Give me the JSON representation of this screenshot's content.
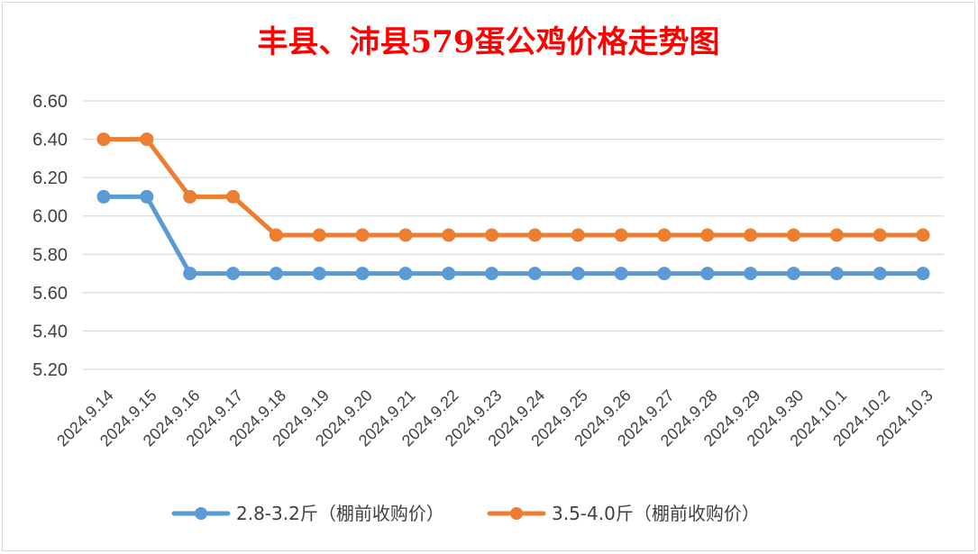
{
  "chart_data": {
    "type": "line",
    "title": "丰县、沛县579蛋公鸡价格走势图",
    "categories": [
      "2024.9.14",
      "2024.9.15",
      "2024.9.16",
      "2024.9.17",
      "2024.9.18",
      "2024.9.19",
      "2024.9.20",
      "2024.9.21",
      "2024.9.22",
      "2024.9.23",
      "2024.9.24",
      "2024.9.25",
      "2024.9.26",
      "2024.9.27",
      "2024.9.28",
      "2024.9.29",
      "2024.9.30",
      "2024.10.1",
      "2024.10.2",
      "2024.10.3"
    ],
    "ylim": [
      5.2,
      6.6
    ],
    "yticks": [
      "5.20",
      "5.40",
      "5.60",
      "5.80",
      "6.00",
      "6.20",
      "6.40",
      "6.60"
    ],
    "grid": true,
    "legend": "bottom",
    "series": [
      {
        "name": "2.8-3.2斤（棚前收购价）",
        "color": "#5B9BD5",
        "values": [
          6.1,
          6.1,
          5.7,
          5.7,
          5.7,
          5.7,
          5.7,
          5.7,
          5.7,
          5.7,
          5.7,
          5.7,
          5.7,
          5.7,
          5.7,
          5.7,
          5.7,
          5.7,
          5.7,
          5.7
        ]
      },
      {
        "name": "3.5-4.0斤（棚前收购价）",
        "color": "#ED7D31",
        "values": [
          6.4,
          6.4,
          6.1,
          6.1,
          5.9,
          5.9,
          5.9,
          5.9,
          5.9,
          5.9,
          5.9,
          5.9,
          5.9,
          5.9,
          5.9,
          5.9,
          5.9,
          5.9,
          5.9,
          5.9
        ]
      }
    ],
    "title_color": "#FF0000"
  }
}
